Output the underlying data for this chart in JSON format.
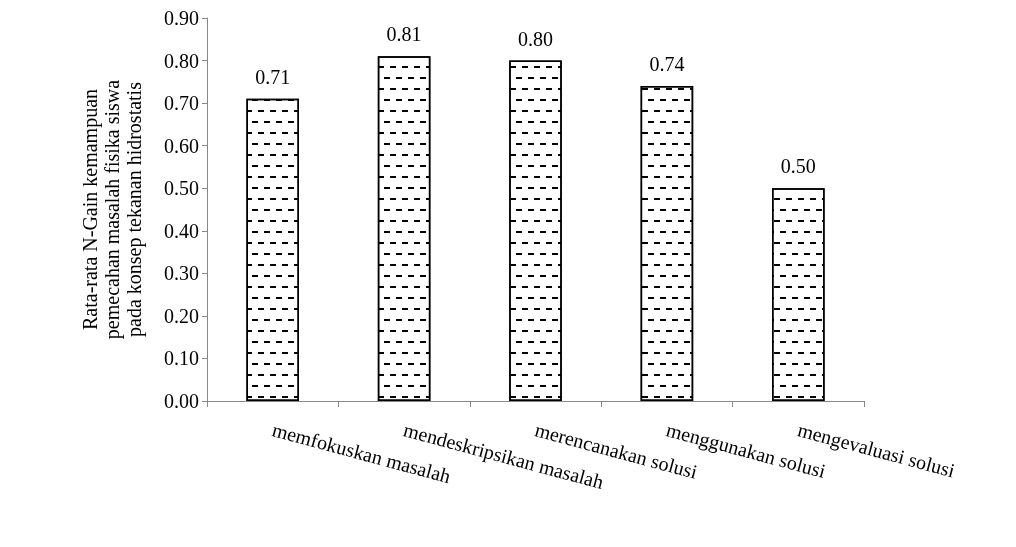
{
  "chart_data": {
    "type": "bar",
    "ylabel": "Rata-rata N-Gain kemampuan\npemecahan masalah fisika siswa\npada konsep tekanan hidrostatis",
    "categories": [
      "memfokuskan masalah",
      "mendeskripsikan masalah",
      "merencanakan solusi",
      "menggunakan solusi",
      "mengevaluasi solusi"
    ],
    "values": [
      0.71,
      0.81,
      0.8,
      0.74,
      0.5
    ],
    "value_labels": [
      "0.71",
      "0.81",
      "0.80",
      "0.74",
      "0.50"
    ],
    "color": "#ffffff",
    "ylim": [
      0,
      0.9
    ],
    "yticks": [
      {
        "value": 0,
        "label": "0.00"
      },
      {
        "value": 0.1,
        "label": "0.10"
      },
      {
        "value": 0.2,
        "label": "0.20"
      },
      {
        "value": 0.3,
        "label": "0.30"
      },
      {
        "value": 0.4,
        "label": "0.40"
      },
      {
        "value": 0.5,
        "label": "0.50"
      },
      {
        "value": 0.6,
        "label": "0.60"
      },
      {
        "value": 0.7,
        "label": "0.70"
      },
      {
        "value": 0.8,
        "label": "0.80"
      },
      {
        "value": 0.9,
        "label": "0.90"
      }
    ],
    "grid": false
  }
}
